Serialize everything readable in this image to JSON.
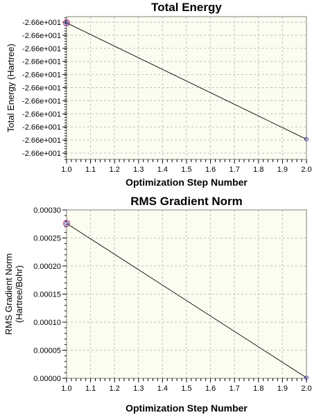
{
  "chart_data": [
    {
      "type": "line",
      "title": "Total Energy",
      "xlabel": "Optimization Step Number",
      "ylabel": [
        "Total Energy (Hartree)"
      ],
      "x": [
        1.0,
        2.0
      ],
      "series": [
        {
          "values": [
            -26.6,
            -26.6
          ]
        }
      ],
      "x_ticks": [
        "1.0",
        "1.1",
        "1.2",
        "1.3",
        "1.4",
        "1.5",
        "1.6",
        "1.7",
        "1.8",
        "1.9",
        "2.0"
      ],
      "y_ticks": [
        "-2.66e+001",
        "-2.66e+001",
        "-2.66e+001",
        "-2.66e+001",
        "-2.66e+001",
        "-2.66e+001",
        "-2.66e+001",
        "-2.66e+001",
        "-2.66e+001",
        "-2.66e+001",
        "-2.66e+001"
      ],
      "xlim": [
        1.0,
        2.0
      ],
      "grid": true,
      "highlighted_point_index": 0,
      "colors": {
        "background": "#fcfcf0",
        "grid": "#c0c0c0",
        "line": "#1a1a1a",
        "marker": "#3a3aa8",
        "highlight": "#b03a8c"
      }
    },
    {
      "type": "line",
      "title": "RMS Gradient Norm",
      "xlabel": "Optimization Step Number",
      "ylabel": [
        "RMS Gradient Norm",
        "(Hartree/Bohr)"
      ],
      "x": [
        1.0,
        2.0
      ],
      "series": [
        {
          "values": [
            0.000276,
            1e-06
          ]
        }
      ],
      "x_ticks": [
        "1.0",
        "1.1",
        "1.2",
        "1.3",
        "1.4",
        "1.5",
        "1.6",
        "1.7",
        "1.8",
        "1.9",
        "2.0"
      ],
      "y_ticks": [
        "0.00000",
        "0.00005",
        "0.00010",
        "0.00015",
        "0.00020",
        "0.00025",
        "0.00030"
      ],
      "xlim": [
        1.0,
        2.0
      ],
      "ylim": [
        0.0,
        0.0003
      ],
      "grid": true,
      "highlighted_point_index": 0,
      "colors": {
        "background": "#fcfcf0",
        "grid": "#c0c0c0",
        "line": "#1a1a1a",
        "marker": "#3a3aa8",
        "highlight": "#b03a8c"
      }
    }
  ]
}
